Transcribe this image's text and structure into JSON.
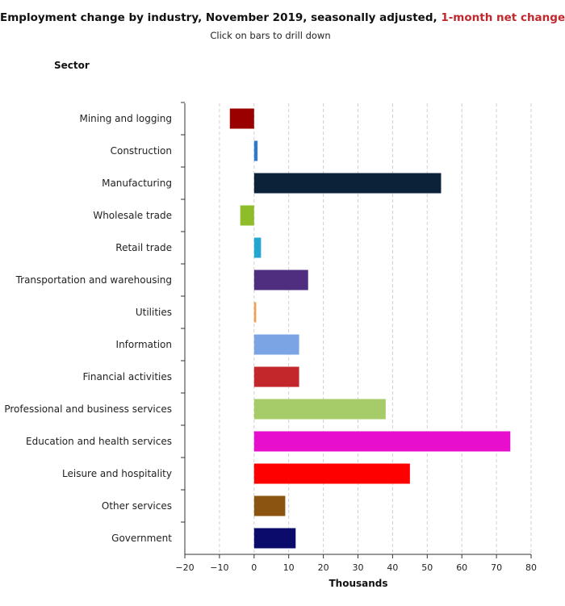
{
  "header": {
    "title_main": "Employment change by industry, November 2019, seasonally adjusted, ",
    "title_accent": "1-month net change",
    "subtitle": "Click on bars to drill down",
    "y_axis_header": "Sector"
  },
  "chart_data": {
    "type": "bar",
    "orientation": "horizontal",
    "title": "Employment change by industry, November 2019, seasonally adjusted, 1-month net change",
    "subtitle": "Click on bars to drill down",
    "xlabel": "Thousands",
    "ylabel": "Sector",
    "xlim": [
      -20,
      80
    ],
    "xticks": [
      -20,
      -10,
      0,
      10,
      20,
      30,
      40,
      50,
      60,
      70,
      80
    ],
    "grid": true,
    "categories": [
      "Mining and logging",
      "Construction",
      "Manufacturing",
      "Wholesale trade",
      "Retail trade",
      "Transportation and warehousing",
      "Utilities",
      "Information",
      "Financial activities",
      "Professional and business services",
      "Education and health services",
      "Leisure and hospitality",
      "Other services",
      "Government"
    ],
    "values": [
      -7,
      1,
      54,
      -4,
      2,
      15.6,
      0.6,
      13,
      13,
      38,
      74,
      45,
      9,
      12
    ],
    "colors": [
      "#990000",
      "#2e7ad1",
      "#0b2239",
      "#8fbd2a",
      "#22a7d1",
      "#4f2d7f",
      "#f0a04b",
      "#7ba4e4",
      "#c3262b",
      "#a6cc6a",
      "#e80fcc",
      "#ff0000",
      "#8c5411",
      "#0b0b6b"
    ]
  }
}
